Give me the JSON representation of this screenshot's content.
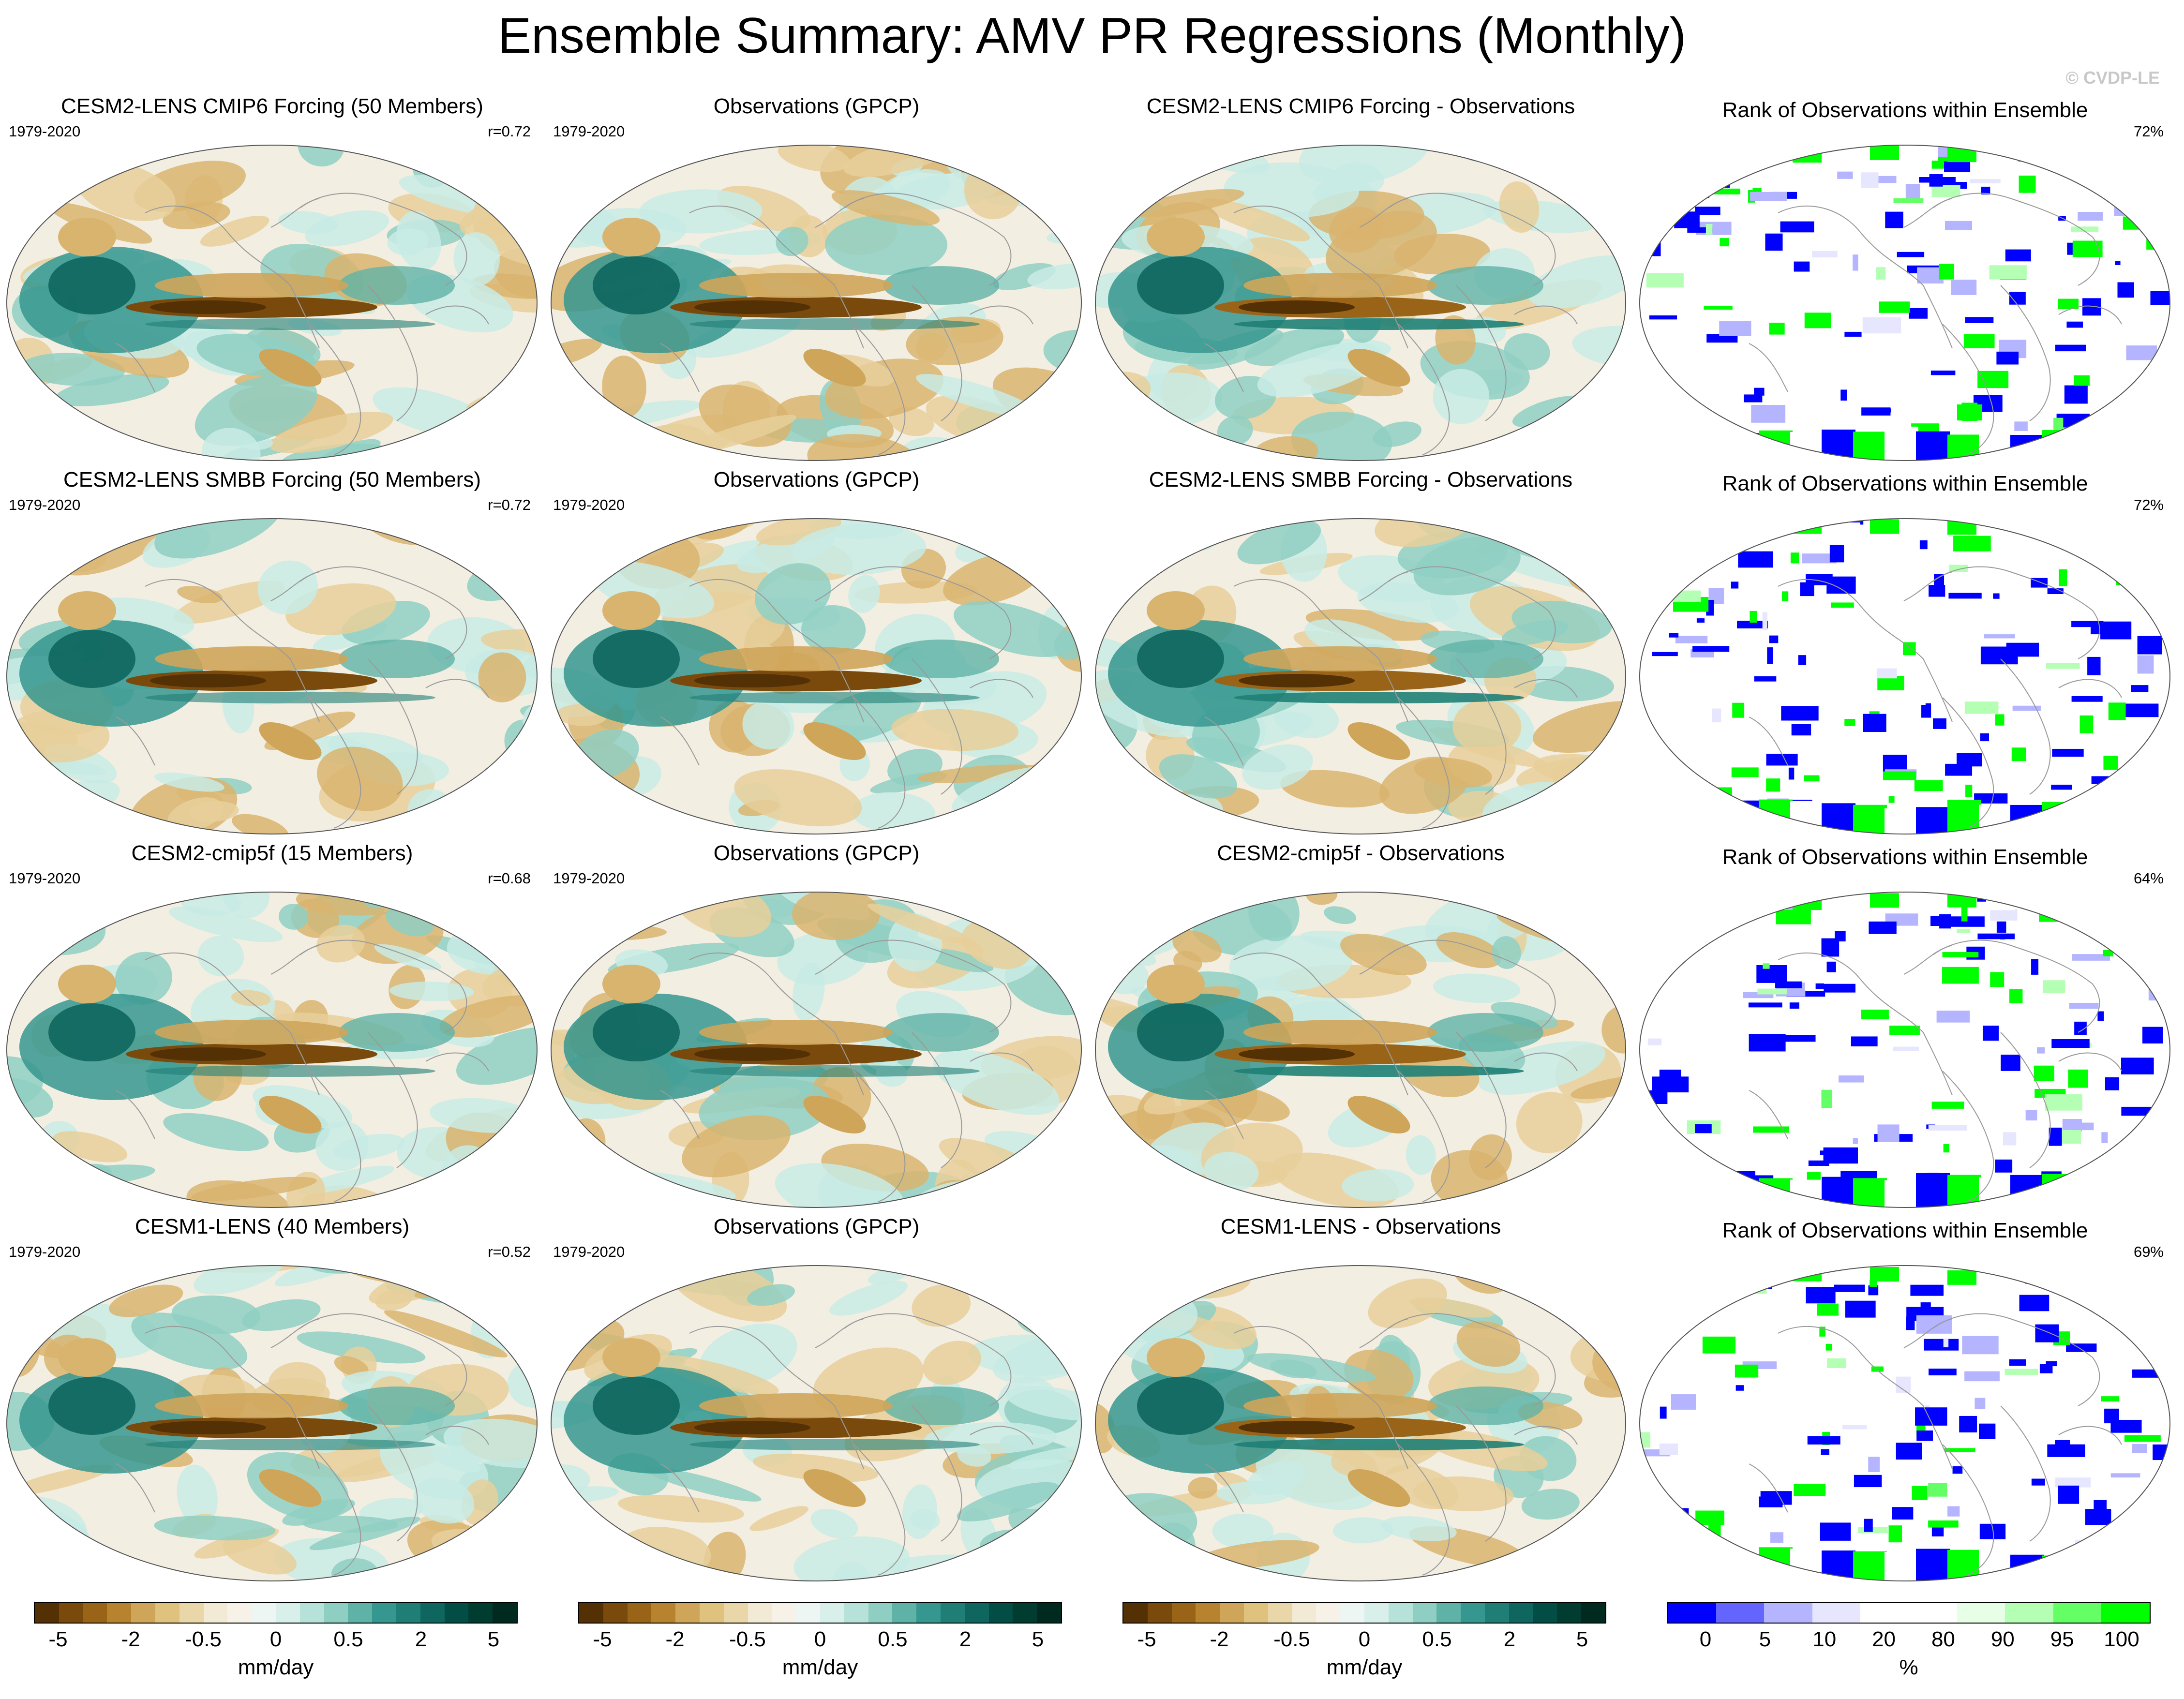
{
  "title": "Ensemble Summary: AMV PR Regressions (Monthly)",
  "watermark": "© CVDP-LE",
  "rows": [
    {
      "period": "1979-2020",
      "model": {
        "title": "CESM2-LENS CMIP6 Forcing (50 Members)",
        "r": "r=0.72"
      },
      "obs": {
        "title": "Observations (GPCP)"
      },
      "diff": {
        "title": "CESM2-LENS CMIP6 Forcing - Observations"
      },
      "rank": {
        "title": "Rank of Observations within Ensemble",
        "pct": "72%"
      }
    },
    {
      "period": "1979-2020",
      "model": {
        "title": "CESM2-LENS SMBB Forcing (50 Members)",
        "r": "r=0.72"
      },
      "obs": {
        "title": "Observations (GPCP)"
      },
      "diff": {
        "title": "CESM2-LENS SMBB Forcing - Observations"
      },
      "rank": {
        "title": "Rank of Observations within Ensemble",
        "pct": "72%"
      }
    },
    {
      "period": "1979-2020",
      "model": {
        "title": "CESM2-cmip5f (15 Members)",
        "r": "r=0.68"
      },
      "obs": {
        "title": "Observations (GPCP)"
      },
      "diff": {
        "title": "CESM2-cmip5f - Observations"
      },
      "rank": {
        "title": "Rank of Observations within Ensemble",
        "pct": "64%"
      }
    },
    {
      "period": "1979-2020",
      "model": {
        "title": "CESM1-LENS (40 Members)",
        "r": "r=0.52"
      },
      "obs": {
        "title": "Observations (GPCP)"
      },
      "diff": {
        "title": "CESM1-LENS - Observations"
      },
      "rank": {
        "title": "Rank of Observations within Ensemble",
        "pct": "69%"
      }
    }
  ],
  "colorbars": {
    "pr": {
      "ticks": [
        "-5",
        "-2",
        "-0.5",
        "0",
        "0.5",
        "2",
        "5"
      ],
      "units": "mm/day",
      "colors": [
        "#543005",
        "#7a4a0d",
        "#9a6418",
        "#b8832e",
        "#cfa55a",
        "#dfc27d",
        "#ead7a9",
        "#f3ead6",
        "#f6f2e8",
        "#eef6f4",
        "#d8efea",
        "#b7e2da",
        "#8fcfc3",
        "#5fb3a6",
        "#35978f",
        "#1f7f76",
        "#0e665e",
        "#024d44",
        "#003c30",
        "#002a20"
      ]
    },
    "rank": {
      "ticks": [
        "0",
        "5",
        "10",
        "20",
        "80",
        "90",
        "95",
        "100"
      ],
      "units": "%",
      "colors": [
        "#0000ff",
        "#6464ff",
        "#b4b4ff",
        "#e6e6ff",
        "#ffffff",
        "#ffffff",
        "#e6ffe6",
        "#b4ffb4",
        "#64ff64",
        "#00ff00"
      ]
    }
  },
  "palette": {
    "land_outline": "#9a9a9a",
    "dry_dark": "#7a4a0d",
    "dry_light": "#e8cf9a",
    "wet_light": "#c8ebe5",
    "wet_dark": "#0e665e",
    "neutral": "#f3eee2",
    "rank_low": "#0000ff",
    "rank_high": "#00ff00"
  }
}
